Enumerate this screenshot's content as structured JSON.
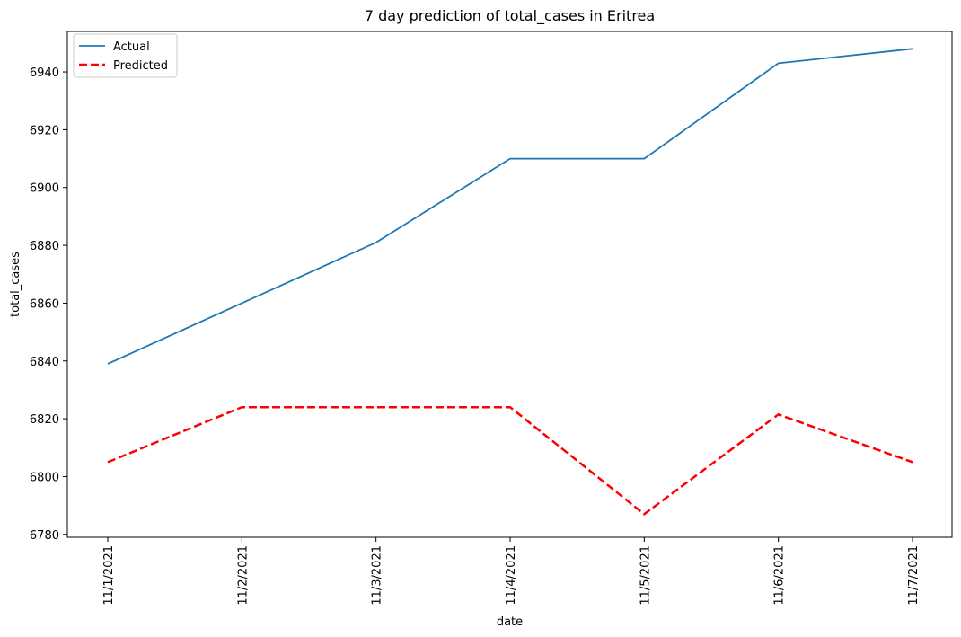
{
  "chart_data": {
    "type": "line",
    "title": "7 day prediction of total_cases in Eritrea",
    "xlabel": "date",
    "ylabel": "total_cases",
    "categories": [
      "11/1/2021",
      "11/2/2021",
      "11/3/2021",
      "11/4/2021",
      "11/5/2021",
      "11/6/2021",
      "11/7/2021"
    ],
    "series": [
      {
        "name": "Actual",
        "values": [
          6839,
          6860,
          6881,
          6910,
          6910,
          6943,
          6948
        ],
        "color": "#1f77b4",
        "style": "solid"
      },
      {
        "name": "Predicted",
        "values": [
          6805,
          6824,
          6824,
          6824,
          6787,
          6821.5,
          6805
        ],
        "color": "#ff0000",
        "style": "dashed"
      }
    ],
    "yticks": [
      6780,
      6800,
      6820,
      6840,
      6860,
      6880,
      6900,
      6920,
      6940
    ],
    "ylim": [
      6779,
      6954
    ],
    "grid": false,
    "legend_position": "top-left",
    "xtick_rotation": 90
  }
}
